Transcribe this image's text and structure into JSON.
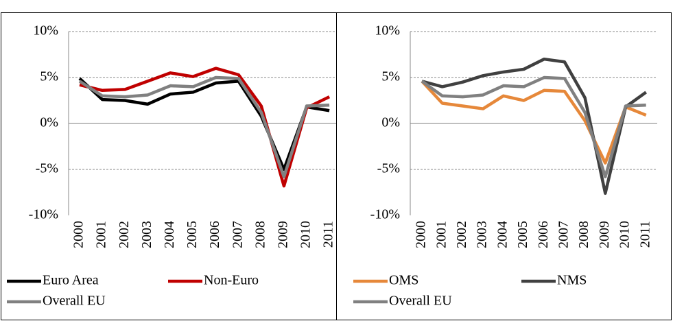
{
  "chart_data": [
    {
      "type": "line",
      "categories": [
        "2000",
        "2001",
        "2002",
        "2003",
        "2004",
        "2005",
        "2006",
        "2007",
        "2008",
        "2009",
        "2010",
        "2011"
      ],
      "ylim": [
        -10,
        10
      ],
      "yticks": [
        {
          "value": -10,
          "label": "-10%"
        },
        {
          "value": -5,
          "label": "-5%"
        },
        {
          "value": 0,
          "label": "0%"
        },
        {
          "value": 5,
          "label": "5%"
        },
        {
          "value": 10,
          "label": "10%"
        }
      ],
      "grid": true,
      "series": [
        {
          "name": "Euro Area",
          "color": "#000000",
          "values": [
            4.9,
            2.6,
            2.5,
            2.1,
            3.2,
            3.4,
            4.4,
            4.6,
            0.8,
            -5.0,
            1.8,
            1.4
          ]
        },
        {
          "name": "Non-Euro",
          "color": "#c00000",
          "values": [
            4.2,
            3.6,
            3.7,
            4.6,
            5.5,
            5.1,
            6.0,
            5.3,
            1.9,
            -6.8,
            1.7,
            2.9
          ]
        },
        {
          "name": "Overall EU",
          "color": "#808080",
          "values": [
            4.6,
            3.0,
            2.9,
            3.1,
            4.1,
            4.0,
            5.0,
            4.9,
            1.2,
            -5.8,
            1.9,
            2.0
          ]
        }
      ]
    },
    {
      "type": "line",
      "categories": [
        "2000",
        "2001",
        "2002",
        "2003",
        "2004",
        "2005",
        "2006",
        "2007",
        "2008",
        "2009",
        "2010",
        "2011"
      ],
      "ylim": [
        -10,
        10
      ],
      "yticks": [
        {
          "value": -10,
          "label": "-10%"
        },
        {
          "value": -5,
          "label": "-5%"
        },
        {
          "value": 0,
          "label": "0%"
        },
        {
          "value": 5,
          "label": "5%"
        },
        {
          "value": 10,
          "label": "10%"
        }
      ],
      "grid": true,
      "series": [
        {
          "name": "OMS",
          "color": "#e6883a",
          "values": [
            4.6,
            2.2,
            1.9,
            1.6,
            3.0,
            2.5,
            3.6,
            3.5,
            0.3,
            -4.3,
            1.8,
            0.9
          ]
        },
        {
          "name": "NMS",
          "color": "#404040",
          "values": [
            4.6,
            4.0,
            4.5,
            5.2,
            5.6,
            5.9,
            7.0,
            6.7,
            2.8,
            -7.6,
            1.8,
            3.4
          ]
        },
        {
          "name": "Overall EU",
          "color": "#808080",
          "values": [
            4.6,
            3.0,
            2.9,
            3.1,
            4.1,
            4.0,
            5.0,
            4.9,
            1.2,
            -5.8,
            1.9,
            2.0
          ]
        }
      ]
    }
  ]
}
